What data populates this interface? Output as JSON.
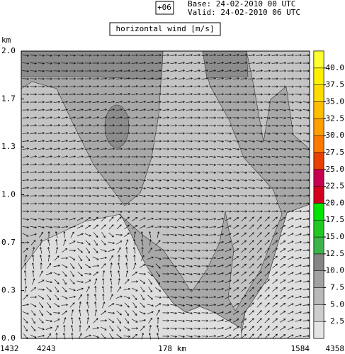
{
  "chart_data": {
    "type": "contour",
    "box_label": "+06",
    "base": "Base: 24-02-2010  00 UTC",
    "valid": "Valid: 24-02-2010  06 UTC",
    "title": "horizontal wind [m/s]",
    "y_label": "km",
    "ylim": [
      0,
      2
    ],
    "yticks": [
      {
        "value": 0,
        "label": "0.0"
      },
      {
        "value": 0.333,
        "label": "0.3"
      },
      {
        "value": 0.667,
        "label": "0.7"
      },
      {
        "value": 1,
        "label": "1.0"
      },
      {
        "value": 1.333,
        "label": "1.3"
      },
      {
        "value": 1.667,
        "label": "1.7"
      },
      {
        "value": 2,
        "label": "2.0"
      }
    ],
    "x_labels": [
      "1432",
      "4243",
      "178 km",
      "1584",
      "4358"
    ],
    "colorbar": {
      "lim": [
        0,
        42.5
      ],
      "bounds": [
        0,
        2.5,
        5,
        7.5,
        10,
        12.5,
        15,
        17.5,
        20,
        22.5,
        25,
        27.5,
        30,
        32.5,
        35,
        37.5,
        40,
        42.5
      ],
      "colors": [
        "#e4e4e4",
        "#cdcdcd",
        "#b9b9b9",
        "#a2a2a2",
        "#858585",
        "#3cb44b",
        "#22c822",
        "#00e400",
        "#d40020",
        "#c80050",
        "#e84000",
        "#ff7a00",
        "#ff9e00",
        "#ffbe00",
        "#ffdc00",
        "#fff000",
        "#ffff30"
      ],
      "ticks": [
        2.5,
        {
          "value": 5,
          "label": "5.0"
        },
        7.5,
        {
          "value": 10,
          "label": "10.0"
        },
        12.5,
        {
          "value": 15,
          "label": "15.0"
        },
        17.5,
        {
          "value": 20,
          "label": "20.0"
        },
        22.5,
        {
          "value": 25,
          "label": "25.0"
        },
        27.5,
        {
          "value": 30,
          "label": "30.0"
        },
        32.5,
        {
          "value": 35,
          "label": "35.0"
        },
        37.5,
        {
          "value": 40,
          "label": "40.0"
        }
      ]
    }
  }
}
